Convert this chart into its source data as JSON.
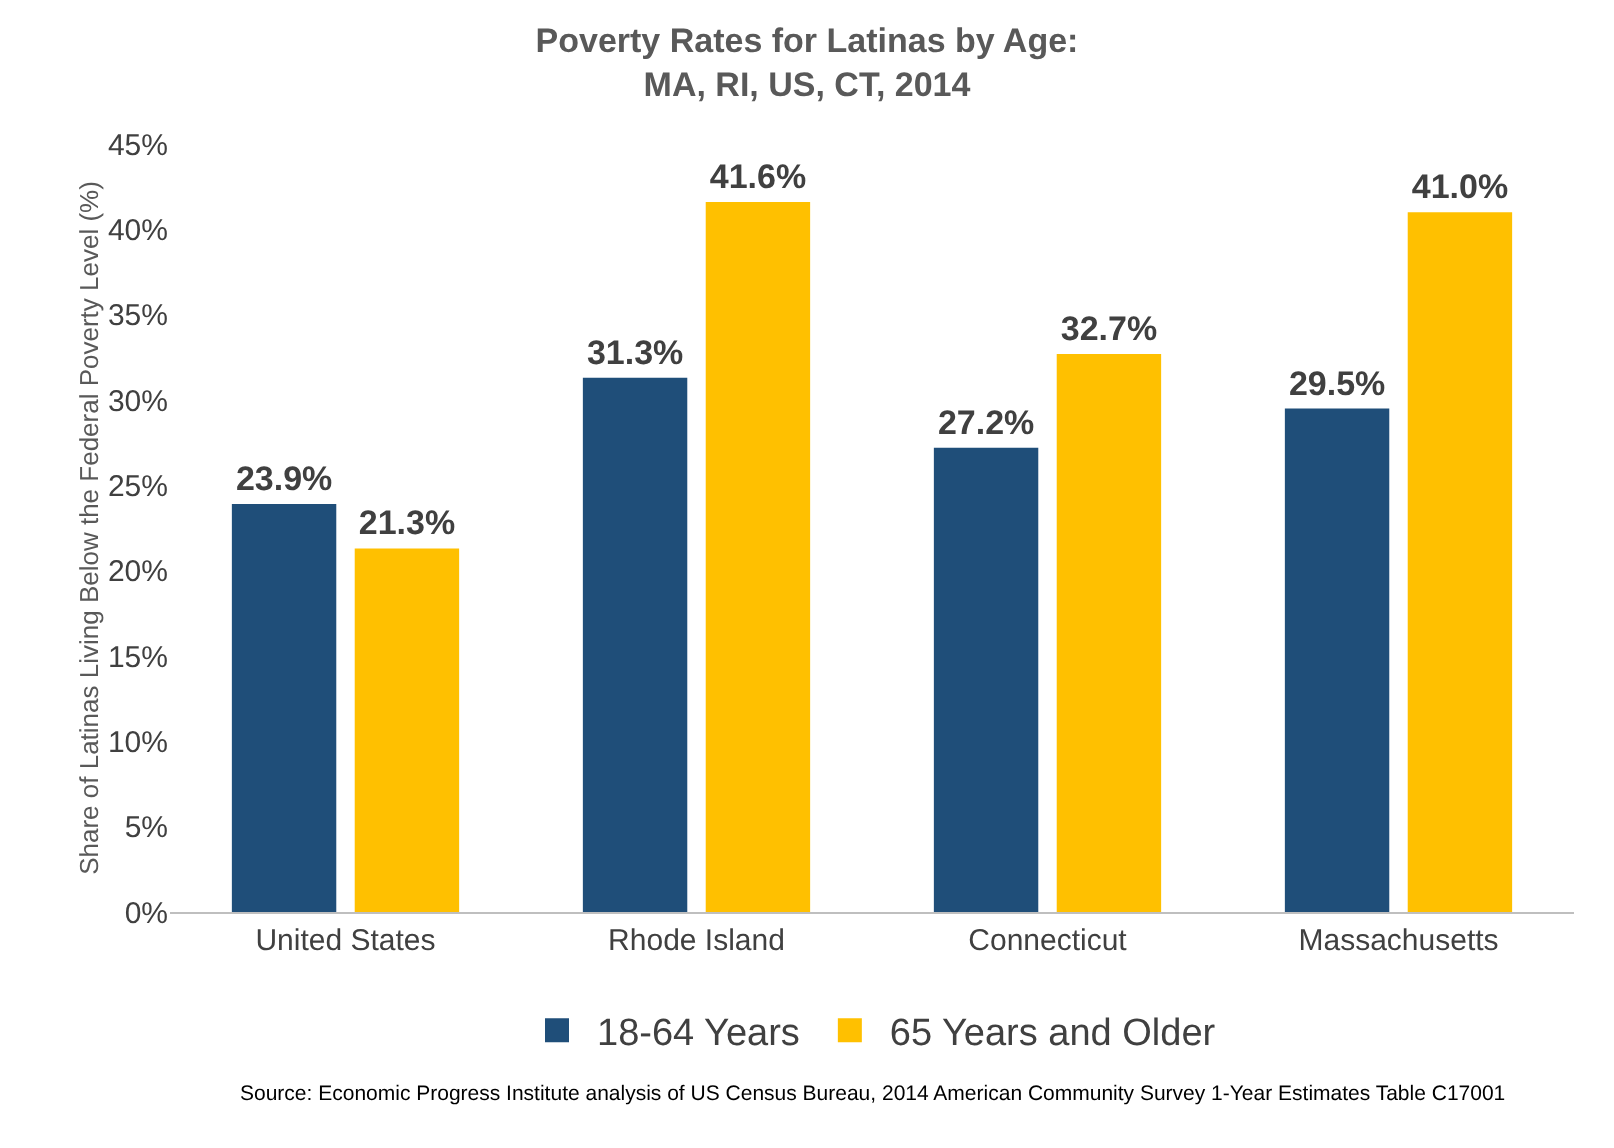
{
  "chart_data": {
    "type": "bar",
    "title": "Poverty Rates for Latinas by Age:\nMA, RI, US, CT, 2014",
    "ylabel": "Share of Latinas Living Below the Federal Poverty Level (%)",
    "categories": [
      "United States",
      "Rhode Island",
      "Connecticut",
      "Massachusetts"
    ],
    "series": [
      {
        "name": "18-64 Years",
        "color": "#1f4e79",
        "values": [
          23.9,
          31.3,
          27.2,
          29.5
        ],
        "value_labels": [
          "23.9%",
          "31.3%",
          "27.2%",
          "29.5%"
        ]
      },
      {
        "name": "65 Years and Older",
        "color": "#ffc000",
        "values": [
          21.3,
          41.6,
          32.7,
          41.0
        ],
        "value_labels": [
          "21.3%",
          "41.6%",
          "32.7%",
          "41.0%"
        ]
      }
    ],
    "ylim": [
      0,
      45
    ],
    "yticks": [
      {
        "value": 0,
        "label": "0%"
      },
      {
        "value": 5,
        "label": "5%"
      },
      {
        "value": 10,
        "label": "10%"
      },
      {
        "value": 15,
        "label": "15%"
      },
      {
        "value": 20,
        "label": "20%"
      },
      {
        "value": 25,
        "label": "25%"
      },
      {
        "value": 30,
        "label": "30%"
      },
      {
        "value": 35,
        "label": "35%"
      },
      {
        "value": 40,
        "label": "40%"
      },
      {
        "value": 45,
        "label": "45%"
      }
    ],
    "grid": false,
    "legend": "bottom",
    "annotations": [
      "Source: Economic Progress Institute analysis of US Census Bureau, 2014 American Community Survey 1-Year Estimates Table C17001"
    ]
  }
}
